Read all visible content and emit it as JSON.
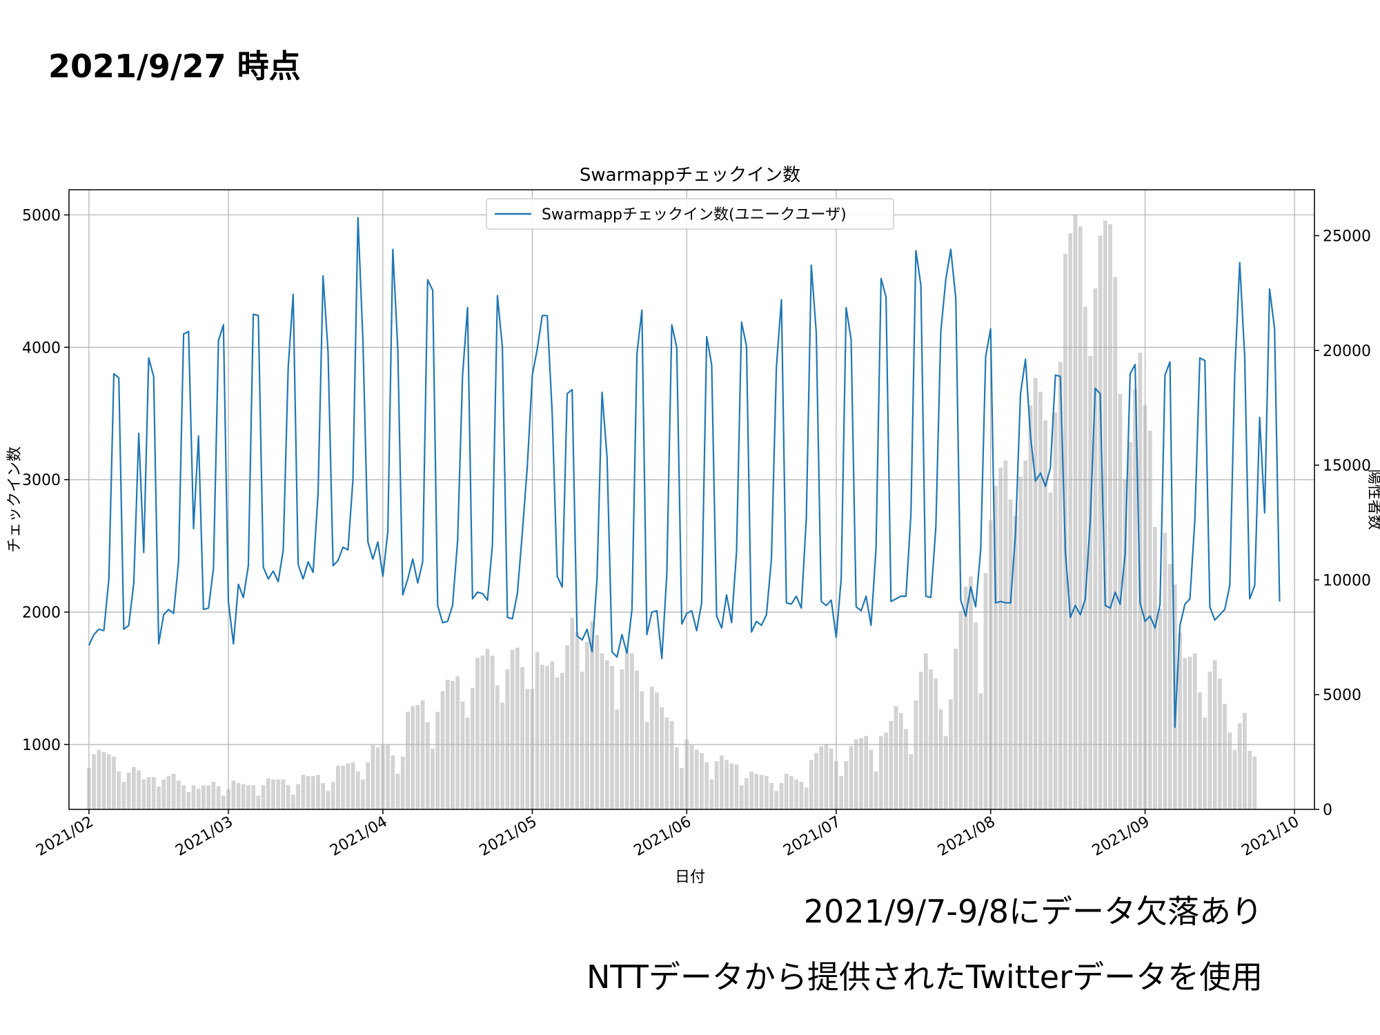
{
  "header": {
    "as_of": "2021/9/27 時点"
  },
  "notes": {
    "missing": "2021/9/7-9/8にデータ欠落あり",
    "source": "NTTデータから提供されたTwitterデータを使用"
  },
  "chart_data": {
    "type": "line+bar",
    "title": "Swarmappチェックイン数",
    "xlabel": "日付",
    "ylabel_left": "チェックイン数",
    "ylabel_right": "陽性者数",
    "x_start": "2021-02-01",
    "x_range": [
      "2021-01-28",
      "2021-10-05"
    ],
    "ylim_left": [
      510,
      5190
    ],
    "ylim_right": [
      0,
      27000
    ],
    "yticks_left": [
      1000,
      2000,
      3000,
      4000,
      5000
    ],
    "yticks_right": [
      0,
      5000,
      10000,
      15000,
      20000,
      25000
    ],
    "xticks": [
      {
        "date": "2021-02-01",
        "label": "2021/02"
      },
      {
        "date": "2021-03-01",
        "label": "2021/03"
      },
      {
        "date": "2021-04-01",
        "label": "2021/04"
      },
      {
        "date": "2021-05-01",
        "label": "2021/05"
      },
      {
        "date": "2021-06-01",
        "label": "2021/06"
      },
      {
        "date": "2021-07-01",
        "label": "2021/07"
      },
      {
        "date": "2021-08-01",
        "label": "2021/08"
      },
      {
        "date": "2021-09-01",
        "label": "2021/09"
      },
      {
        "date": "2021-10-01",
        "label": "2021/10"
      }
    ],
    "grid": true,
    "legend_position": "top-center",
    "series": [
      {
        "name": "Swarmappチェックイン数(ユニークユーザ)",
        "type": "line",
        "axis": "left",
        "color": "#1f77b4",
        "values": [
          1750,
          1830,
          1870,
          1860,
          2250,
          3800,
          3770,
          1870,
          1900,
          2220,
          3350,
          2450,
          3920,
          3780,
          1760,
          1980,
          2020,
          1990,
          2380,
          4100,
          4120,
          2630,
          3330,
          2020,
          2030,
          2330,
          4050,
          4170,
          2080,
          1760,
          2210,
          2110,
          2350,
          4250,
          4240,
          2340,
          2250,
          2310,
          2230,
          2470,
          3850,
          4400,
          2360,
          2250,
          2380,
          2300,
          2900,
          4540,
          3970,
          2350,
          2390,
          2490,
          2470,
          3000,
          4980,
          4050,
          2530,
          2400,
          2530,
          2270,
          2610,
          4740,
          3990,
          2130,
          2250,
          2400,
          2220,
          2380,
          4510,
          4430,
          2050,
          1920,
          1930,
          2050,
          2540,
          3790,
          4300,
          2100,
          2150,
          2140,
          2090,
          2510,
          4390,
          4000,
          1960,
          1950,
          2140,
          2600,
          3100,
          3790,
          3990,
          4240,
          4240,
          3500,
          2270,
          2190,
          3650,
          3680,
          1820,
          1790,
          1870,
          1700,
          2260,
          3660,
          3170,
          1700,
          1660,
          1830,
          1690,
          2020,
          3950,
          4280,
          1830,
          2000,
          2010,
          1650,
          2290,
          4170,
          4000,
          1910,
          1990,
          2010,
          1860,
          2070,
          4080,
          3870,
          1970,
          1880,
          2130,
          1920,
          2460,
          4190,
          4010,
          1850,
          1930,
          1900,
          1980,
          2400,
          3850,
          4360,
          2070,
          2060,
          2120,
          2030,
          2710,
          4620,
          4110,
          2080,
          2050,
          2090,
          1810,
          2250,
          4300,
          4060,
          2040,
          2010,
          2120,
          1900,
          2480,
          4520,
          4380,
          2080,
          2100,
          2120,
          2120,
          2740,
          4730,
          4470,
          2120,
          2110,
          2640,
          4120,
          4510,
          4740,
          4370,
          2090,
          1970,
          2190,
          2040,
          2470,
          3930,
          4140,
          2070,
          2080,
          2070,
          2070,
          2600,
          3650,
          3910,
          3330,
          2990,
          3050,
          2950,
          3090,
          3790,
          3780,
          2460,
          1960,
          2050,
          1980,
          2100,
          2690,
          3690,
          3650,
          2050,
          2030,
          2150,
          2060,
          2440,
          3800,
          3870,
          2070,
          1930,
          1970,
          1880,
          2060,
          3790,
          3890,
          1130,
          1900,
          2060,
          2100,
          2700,
          3920,
          3900,
          2040,
          1940,
          1980,
          2020,
          2200,
          3810,
          4640,
          3930,
          2100,
          2200,
          3470,
          2750,
          4440,
          4140,
          2080
        ],
        "missing_note": "2021/9/7-9/8"
      },
      {
        "name": "陽性者数",
        "type": "bar",
        "axis": "right",
        "color": "#d3d3d3",
        "values": [
          1800,
          2400,
          2600,
          2500,
          2400,
          2300,
          1650,
          1200,
          1600,
          1850,
          1700,
          1300,
          1400,
          1400,
          1000,
          1300,
          1450,
          1550,
          1250,
          1050,
          750,
          1050,
          900,
          1050,
          1050,
          1200,
          1000,
          600,
          880,
          1250,
          1150,
          1100,
          1050,
          1050,
          600,
          1050,
          1350,
          1300,
          1300,
          1300,
          1050,
          650,
          1100,
          1500,
          1450,
          1450,
          1500,
          1150,
          800,
          1200,
          1900,
          1900,
          2000,
          2050,
          1650,
          1300,
          2050,
          2800,
          2700,
          2800,
          2800,
          2350,
          1550,
          2300,
          4250,
          4500,
          4550,
          4750,
          3800,
          2650,
          4250,
          5150,
          5650,
          5600,
          5800,
          4700,
          4000,
          5300,
          6600,
          6700,
          7000,
          6700,
          5400,
          4650,
          6100,
          6950,
          7050,
          6200,
          5250,
          5250,
          6850,
          6300,
          6250,
          6450,
          5750,
          5950,
          7150,
          8350,
          7700,
          6000,
          7300,
          8200,
          7600,
          6800,
          6500,
          6250,
          4350,
          6100,
          6950,
          6800,
          6050,
          5150,
          3800,
          5350,
          5100,
          4450,
          4000,
          3850,
          2700,
          1800,
          3050,
          2800,
          2600,
          2450,
          2050,
          1300,
          2100,
          2350,
          2150,
          2000,
          1950,
          1050,
          1350,
          1650,
          1550,
          1500,
          1450,
          1150,
          800,
          1150,
          1550,
          1450,
          1300,
          1200,
          950,
          2150,
          2450,
          2750,
          2850,
          2650,
          2100,
          1450,
          2100,
          2750,
          3050,
          3100,
          3200,
          2600,
          1650,
          3200,
          3350,
          3850,
          4500,
          4200,
          3500,
          2400,
          4750,
          6000,
          6800,
          6100,
          5700,
          4350,
          3200,
          4800,
          7000,
          8650,
          9700,
          10150,
          8150,
          5050,
          10300,
          12600,
          14100,
          14900,
          15200,
          13500,
          12800,
          14500,
          15200,
          17600,
          18800,
          18200,
          16950,
          13800,
          17300,
          19500,
          24200,
          25100,
          25900,
          25400,
          21900,
          19750,
          22700,
          25000,
          25650,
          25500,
          23200,
          18100,
          14350,
          16000,
          18300,
          19900,
          17600,
          16500,
          12300,
          8750,
          12050,
          10700,
          9800,
          7700,
          6600,
          6650,
          6800,
          5100,
          4000,
          6000,
          6500,
          5700,
          4600,
          3350,
          2600,
          3750,
          4200,
          2550,
          2300
        ]
      }
    ]
  }
}
